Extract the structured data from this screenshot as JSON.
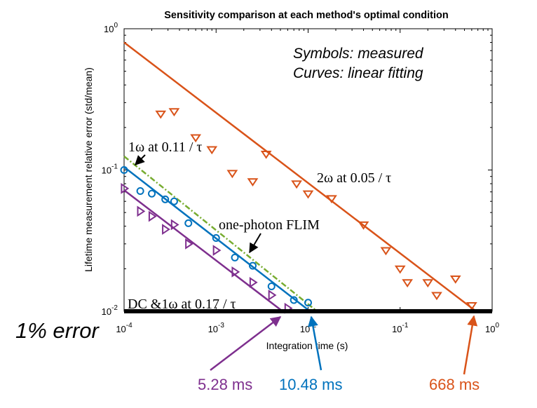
{
  "chart_data": {
    "type": "scatter",
    "title": "Sensitivity comparison at each method's optimal condition",
    "xlabel": "Integration time (s)",
    "ylabel": "Lifetime measurement relative error (std/mean)",
    "x_scale": "log",
    "y_scale": "log",
    "xlim": [
      0.0001,
      1
    ],
    "ylim": [
      0.01,
      1
    ],
    "x_ticks": [
      {
        "base": "10",
        "exp": "-4"
      },
      {
        "base": "10",
        "exp": "-3"
      },
      {
        "base": "10",
        "exp": "-2"
      },
      {
        "base": "10",
        "exp": "-1"
      },
      {
        "base": "10",
        "exp": "0"
      }
    ],
    "y_ticks": [
      {
        "base": "10",
        "exp": "-2"
      },
      {
        "base": "10",
        "exp": "-1"
      },
      {
        "base": "10",
        "exp": "0"
      }
    ],
    "legend_note": [
      "Symbols: measured",
      "Curves: linear fitting"
    ],
    "series": [
      {
        "name": "2ω at 0.05 / τ",
        "color": "#d95319",
        "marker": "triangle-down",
        "points": [
          [
            0.00025,
            0.25
          ],
          [
            0.00035,
            0.26
          ],
          [
            0.0006,
            0.17
          ],
          [
            0.0009,
            0.14
          ],
          [
            0.0015,
            0.095
          ],
          [
            0.0025,
            0.083
          ],
          [
            0.0035,
            0.13
          ],
          [
            0.0075,
            0.08
          ],
          [
            0.01,
            0.068
          ],
          [
            0.018,
            0.063
          ],
          [
            0.04,
            0.041
          ],
          [
            0.07,
            0.027
          ],
          [
            0.1,
            0.02
          ],
          [
            0.12,
            0.016
          ],
          [
            0.2,
            0.016
          ],
          [
            0.25,
            0.013
          ],
          [
            0.4,
            0.017
          ],
          [
            0.6,
            0.011
          ]
        ],
        "fit": [
          [
            0.0001,
            0.8
          ],
          [
            0.668,
            0.01
          ]
        ]
      },
      {
        "name": "1ω at 0.11 / τ",
        "color": "#0072bd",
        "marker": "circle",
        "points": [
          [
            0.0001,
            0.1
          ],
          [
            0.00015,
            0.071
          ],
          [
            0.0002,
            0.068
          ],
          [
            0.00028,
            0.062
          ],
          [
            0.00035,
            0.06
          ],
          [
            0.0005,
            0.042
          ],
          [
            0.001,
            0.033
          ],
          [
            0.0016,
            0.024
          ],
          [
            0.0025,
            0.021
          ],
          [
            0.004,
            0.015
          ],
          [
            0.007,
            0.012
          ],
          [
            0.01,
            0.0115
          ]
        ],
        "fit": [
          [
            0.0001,
            0.105
          ],
          [
            0.01048,
            0.01
          ]
        ]
      },
      {
        "name": "DC &1ω at 0.17 / τ",
        "color": "#7e2f8e",
        "marker": "triangle-right",
        "points": [
          [
            0.0001,
            0.074
          ],
          [
            0.00015,
            0.051
          ],
          [
            0.0002,
            0.047
          ],
          [
            0.00028,
            0.038
          ],
          [
            0.00035,
            0.041
          ],
          [
            0.0005,
            0.03
          ],
          [
            0.001,
            0.027
          ],
          [
            0.0016,
            0.019
          ],
          [
            0.0025,
            0.016
          ],
          [
            0.004,
            0.013
          ],
          [
            0.006,
            0.0105
          ]
        ],
        "fit": [
          [
            0.0001,
            0.072
          ],
          [
            0.00528,
            0.01
          ]
        ]
      },
      {
        "name": "one-photon FLIM",
        "color": "#77ac30",
        "marker": "none",
        "line_style": "dash-dot",
        "fit": [
          [
            0.0001,
            0.125
          ],
          [
            0.0125,
            0.01
          ]
        ]
      }
    ],
    "reference_line": {
      "label": "1% error",
      "y": 0.01,
      "color": "#000000"
    },
    "annotations": [
      {
        "text": "5.28 ms",
        "x": 0.00528,
        "color": "#7e2f8e"
      },
      {
        "text": "10.48 ms",
        "x": 0.01048,
        "color": "#0072bd"
      },
      {
        "text": "668 ms",
        "x": 0.668,
        "color": "#d95319"
      }
    ],
    "grid": false,
    "legend": "none"
  }
}
